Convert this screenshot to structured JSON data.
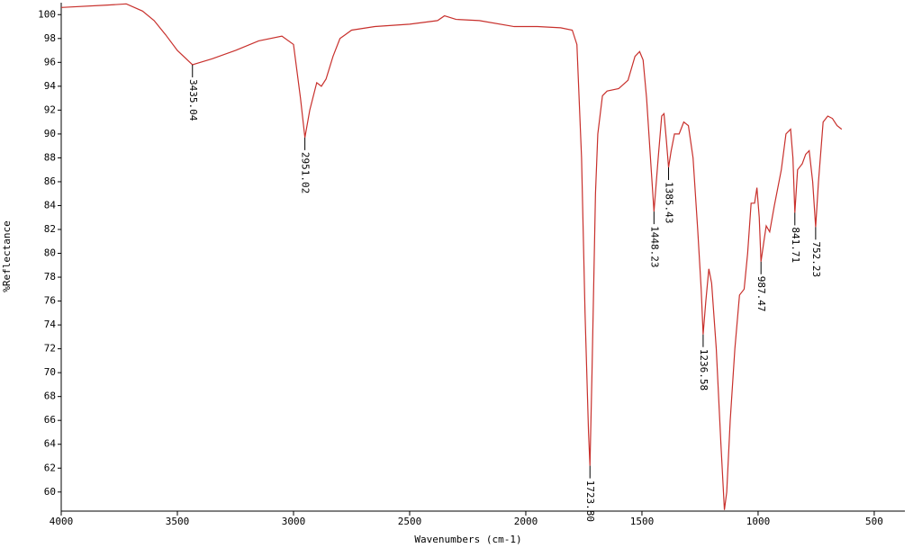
{
  "chart_data": {
    "type": "line",
    "x_label": "Wavenumbers (cm-1)",
    "y_label": "%Reflectance",
    "xlim": [
      4000,
      368
    ],
    "ylim": [
      58.4,
      101.0
    ],
    "xticks": [
      4000,
      3500,
      3000,
      2500,
      2000,
      1500,
      1000,
      500
    ],
    "yticks": [
      60,
      62,
      64,
      66,
      68,
      70,
      72,
      74,
      76,
      78,
      80,
      82,
      84,
      86,
      88,
      90,
      92,
      94,
      96,
      98,
      100
    ],
    "x": [
      4000,
      3800,
      3720,
      3650,
      3600,
      3550,
      3500,
      3435,
      3350,
      3250,
      3150,
      3050,
      3000,
      2970,
      2951,
      2930,
      2900,
      2880,
      2860,
      2830,
      2800,
      2750,
      2650,
      2500,
      2380,
      2350,
      2300,
      2200,
      2050,
      1950,
      1850,
      1800,
      1780,
      1760,
      1745,
      1730,
      1723.8,
      1715,
      1700,
      1690,
      1670,
      1650,
      1600,
      1560,
      1530,
      1510,
      1495,
      1480,
      1460,
      1448.2,
      1430,
      1415,
      1405,
      1395,
      1385.4,
      1375,
      1360,
      1340,
      1320,
      1300,
      1280,
      1260,
      1245,
      1236.6,
      1225,
      1212,
      1200,
      1180,
      1160,
      1145,
      1135,
      1120,
      1100,
      1080,
      1060,
      1045,
      1030,
      1015,
      1005,
      995,
      987.5,
      975,
      965,
      950,
      930,
      900,
      880,
      860,
      850,
      841.7,
      830,
      810,
      795,
      780,
      765,
      752.2,
      740,
      720,
      700,
      680,
      660,
      640
    ],
    "series": [
      {
        "color": "#c8302c",
        "values": [
          100.6,
          100.8,
          100.9,
          100.3,
          99.5,
          98.3,
          97.0,
          95.8,
          96.3,
          97.0,
          97.8,
          98.2,
          97.5,
          93.0,
          89.7,
          92.0,
          94.3,
          94.0,
          94.6,
          96.5,
          98.0,
          98.7,
          99.0,
          99.2,
          99.5,
          99.9,
          99.6,
          99.5,
          99.0,
          99.0,
          98.9,
          98.7,
          97.5,
          88.0,
          75.0,
          65.0,
          62.2,
          70.0,
          85.0,
          90.0,
          93.2,
          93.6,
          93.8,
          94.5,
          96.5,
          96.9,
          96.2,
          93.0,
          87.0,
          83.5,
          88.0,
          91.5,
          91.7,
          89.5,
          87.2,
          88.5,
          90.0,
          90.0,
          91.0,
          90.7,
          88.0,
          82.0,
          77.0,
          73.2,
          76.0,
          78.7,
          77.5,
          72.0,
          64.0,
          58.5,
          60.0,
          66.0,
          72.0,
          76.5,
          77.0,
          80.0,
          84.2,
          84.2,
          85.5,
          83.0,
          79.3,
          81.0,
          82.3,
          81.8,
          84.0,
          87.0,
          90.0,
          90.4,
          88.0,
          83.4,
          87.0,
          87.5,
          88.3,
          88.6,
          86.0,
          82.2,
          86.0,
          91.0,
          91.5,
          91.3,
          90.7,
          90.4
        ]
      }
    ],
    "peaks": [
      {
        "x": 3435.04,
        "y": 95.8,
        "label": "3435.04"
      },
      {
        "x": 2951.02,
        "y": 89.7,
        "label": "2951.02"
      },
      {
        "x": 1723.8,
        "y": 62.2,
        "label": "1723.80"
      },
      {
        "x": 1448.23,
        "y": 83.5,
        "label": "1448.23"
      },
      {
        "x": 1385.43,
        "y": 87.2,
        "label": "1385.43"
      },
      {
        "x": 1236.58,
        "y": 73.2,
        "label": "1236.58"
      },
      {
        "x": 987.47,
        "y": 79.3,
        "label": "987.47"
      },
      {
        "x": 841.71,
        "y": 83.4,
        "label": "841.71"
      },
      {
        "x": 752.23,
        "y": 82.2,
        "label": "752.23"
      }
    ]
  }
}
